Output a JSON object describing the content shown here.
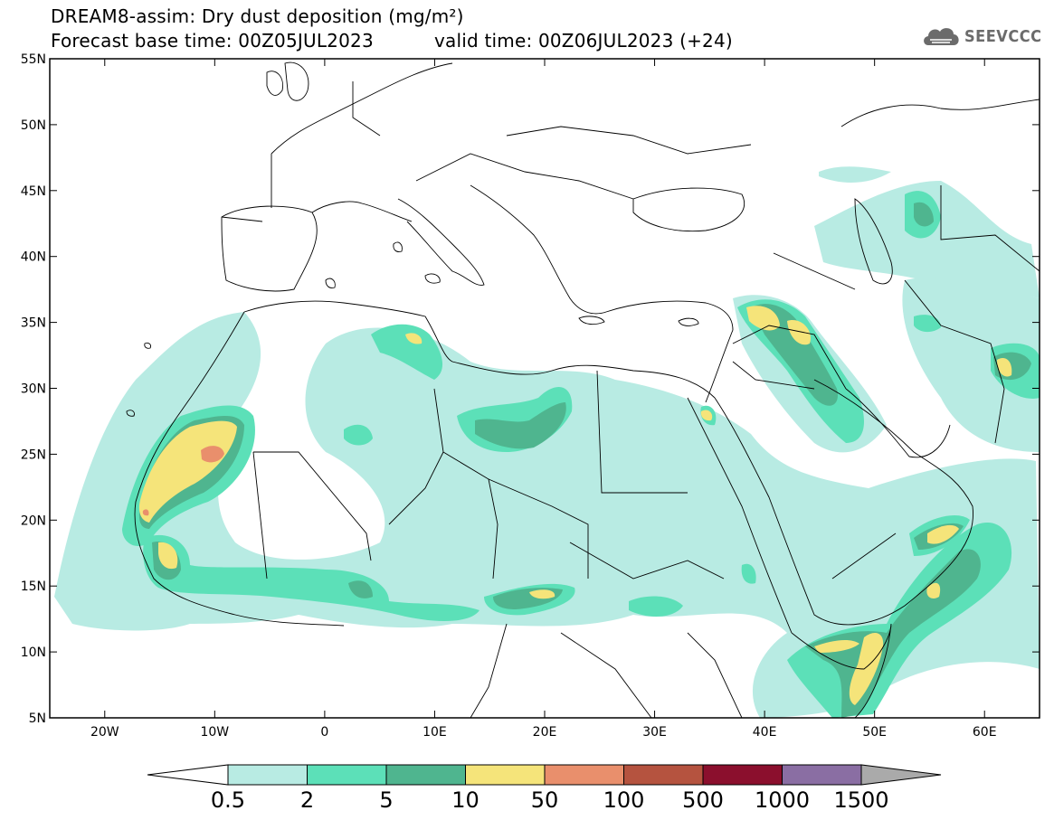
{
  "header": {
    "title_line1": "DREAM8-assim: Dry dust deposition (mg/m²)",
    "base_time": "Forecast base time: 00Z05JUL2023",
    "valid_time": "valid time: 00Z06JUL2023 (+24)"
  },
  "logo": {
    "text": "SEEVCCC",
    "icon": "cloud-logo-icon",
    "color": "#6b6b6b"
  },
  "map": {
    "region": "North Africa, Middle East, Mediterranean",
    "lon_range": [
      -25,
      65
    ],
    "lat_range": [
      5,
      55
    ],
    "lat_ticks": [
      "55N",
      "50N",
      "45N",
      "40N",
      "35N",
      "30N",
      "25N",
      "20N",
      "15N",
      "10N",
      "5N"
    ],
    "lon_ticks": [
      "20W",
      "10W",
      "0",
      "10E",
      "20E",
      "30E",
      "40E",
      "50E",
      "60E"
    ]
  },
  "colorbar": {
    "labels": [
      "0.5",
      "2",
      "5",
      "10",
      "50",
      "100",
      "500",
      "1000",
      "1500"
    ],
    "colors": [
      "#b8ebe3",
      "#5ce0b8",
      "#4fb58f",
      "#f5e47a",
      "#e98f6c",
      "#b5533f",
      "#8b0f2d",
      "#8a6ea3"
    ],
    "under_color": "#ffffff",
    "over_color": "#aaaaaa"
  }
}
